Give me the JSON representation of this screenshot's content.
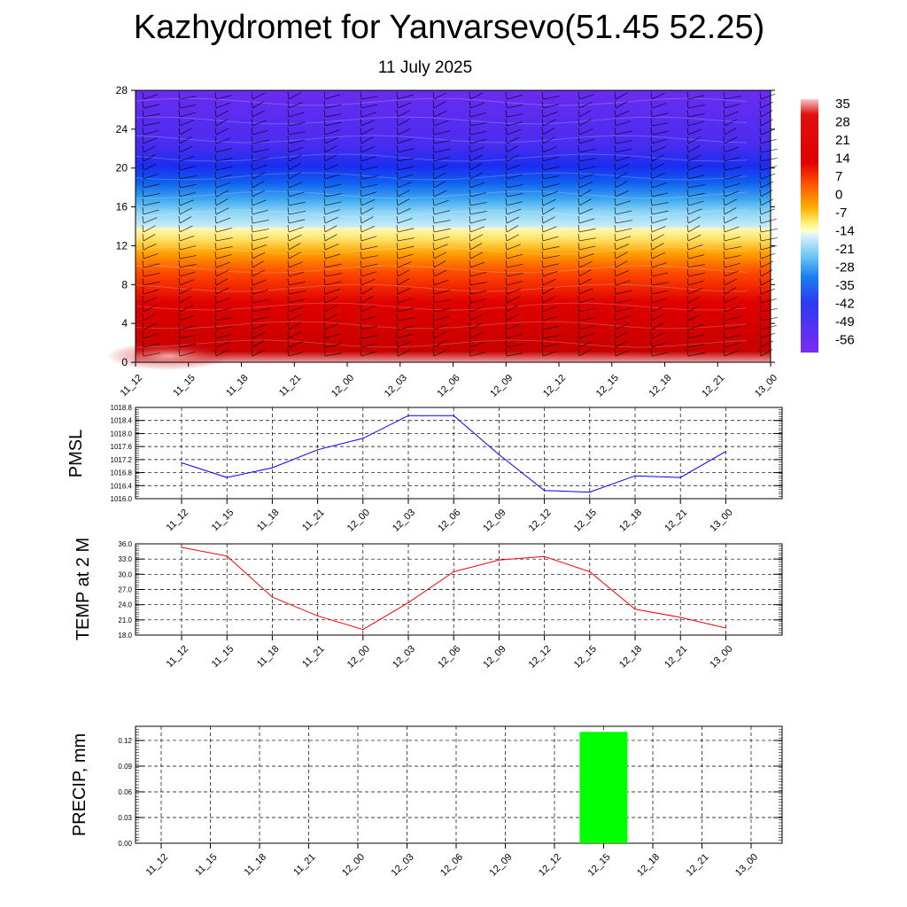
{
  "header": {
    "title": "Kazhydromet for Yanvarsevo(51.45 52.25)",
    "date": "11 July 2025"
  },
  "time_labels": [
    "11_12",
    "11_15",
    "11_18",
    "11_21",
    "12_00",
    "12_03",
    "12_06",
    "12_09",
    "12_12",
    "12_15",
    "12_18",
    "12_21",
    "13_00"
  ],
  "chart_data": [
    {
      "type": "heatmap",
      "y_ticks": [
        0,
        4,
        8,
        12,
        16,
        20,
        24,
        28
      ],
      "ylim": [
        0,
        28
      ],
      "colorbar_labels": [
        "35",
        "28",
        "21",
        "14",
        "7",
        "0",
        "-7",
        "-14",
        "-21",
        "-28",
        "-35",
        "-42",
        "-49",
        "-56"
      ],
      "colors": {
        "low": "#7b2cf0",
        "mid": "#fff27a",
        "high": "#d10000"
      }
    },
    {
      "type": "line",
      "ylabel": "PMSL",
      "y_ticks": [
        "1016.0",
        "1016.4",
        "1016.8",
        "1017.2",
        "1017.6",
        "1018.0",
        "1018.4",
        "1018.8"
      ],
      "ylim": [
        1016.0,
        1018.8
      ],
      "values": [
        1017.1,
        1016.65,
        1016.95,
        1017.5,
        1017.85,
        1018.55,
        1018.55,
        1017.35,
        1016.25,
        1016.2,
        1016.7,
        1016.65,
        1017.45
      ],
      "color": "#0000ff"
    },
    {
      "type": "line",
      "ylabel": "TEMP at 2 M",
      "y_ticks": [
        "18.0",
        "21.0",
        "24.0",
        "27.0",
        "30.0",
        "33.0",
        "36.0"
      ],
      "ylim": [
        18.0,
        36.0
      ],
      "values": [
        35.3,
        33.6,
        25.5,
        21.8,
        19.1,
        24.4,
        30.5,
        32.8,
        33.5,
        30.5,
        23.1,
        21.5,
        19.4
      ],
      "color": "#ff0000"
    },
    {
      "type": "bar",
      "ylabel": "PRECIP, mm",
      "y_ticks": [
        "0.00",
        "0.03",
        "0.06",
        "0.09",
        "0.12"
      ],
      "ylim": [
        0.0,
        0.1365
      ],
      "values": [
        0,
        0,
        0,
        0,
        0,
        0,
        0,
        0,
        0,
        0.13,
        0,
        0,
        0
      ],
      "color": "#00ff00"
    }
  ]
}
